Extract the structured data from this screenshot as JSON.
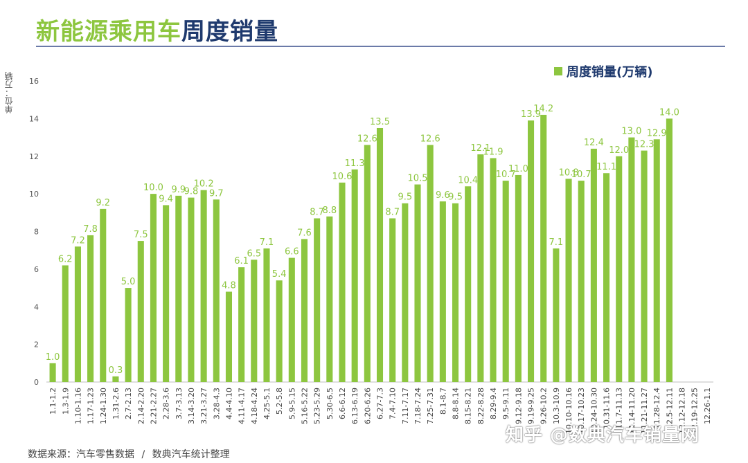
{
  "header": {
    "title_green": "新能源乘用车",
    "title_navy": "周度销量"
  },
  "unit_label": "单位：万辆",
  "legend": {
    "label": "周度销量(万辆)"
  },
  "footer": {
    "source_a": "数据来源：汽车零售数据",
    "separator": "/",
    "source_b": "数典汽车统计整理"
  },
  "watermark": "知乎 @数典汽车销量网",
  "colors": {
    "bar": "#8dc63f",
    "label": "#8dc63f",
    "title_green": "#8dc63f",
    "title_navy": "#1f3a6e"
  },
  "chart_data": {
    "type": "bar",
    "ylim": [
      0,
      16
    ],
    "yticks": [
      0,
      2,
      4,
      6,
      8,
      10,
      12,
      14,
      16
    ],
    "grid": false,
    "legend_position": "top-right",
    "categories": [
      "1.1-1.2",
      "1.3-1.9",
      "1.10-1.16",
      "1.17-1.23",
      "1.24-1.30",
      "1.31-2.6",
      "2.7-2.13",
      "2.14-2.20",
      "2.21-2.27",
      "2.28-3.6",
      "3.7-3.13",
      "3.14-3.20",
      "3.21-3.27",
      "3.28-4.3",
      "4.4-4.10",
      "4.11-4.17",
      "4.18-4.24",
      "4.25-5.1",
      "5.2-5.8",
      "5.9-5.15",
      "5.16-5.22",
      "5.23-5.29",
      "5.30-6.5",
      "6.6-6.12",
      "6.13-6.19",
      "6.20-6.26",
      "6.27-7.3",
      "7.4-7.10",
      "7.11-7.17",
      "7.18-7.24",
      "7.25-7.31",
      "8.1-8.7",
      "8.8-8.14",
      "8.15-8.21",
      "8.22-8.28",
      "8.29-9.4",
      "9.5-9.11",
      "9.12-9.18",
      "9.19-9.25",
      "9.26-10.2",
      "10.3-10.9",
      "10.10-10.16",
      "10.17-10.23",
      "10.24-10.30",
      "10.31-11.6",
      "11.7-11.13",
      "11.14-11.20",
      "11.21-11.27",
      "11.28-12.4",
      "12.5-12.11",
      "12.12-12.18",
      "12.19-12.25",
      "12.26-1.1"
    ],
    "series": [
      {
        "name": "周度销量(万辆)",
        "values": [
          1.0,
          6.2,
          7.2,
          7.8,
          9.2,
          0.3,
          5.0,
          7.5,
          10.0,
          9.4,
          9.9,
          9.8,
          10.2,
          9.7,
          4.8,
          6.1,
          6.5,
          7.1,
          5.4,
          6.6,
          7.6,
          8.7,
          8.8,
          10.6,
          11.3,
          12.6,
          13.5,
          8.7,
          9.5,
          10.5,
          12.6,
          9.6,
          9.5,
          10.4,
          12.1,
          11.9,
          10.7,
          11.0,
          13.9,
          14.2,
          7.1,
          10.8,
          10.7,
          12.4,
          11.1,
          12.0,
          13.0,
          12.3,
          12.9,
          14.0,
          null,
          null,
          null
        ],
        "labels": [
          "1.0",
          "6.2",
          "7.2",
          "7.8",
          "9.2",
          "0.3",
          "5.0",
          "7.5",
          "10.0",
          "9.4",
          "9.9",
          "9.8",
          "10.2",
          "9.7",
          "4.8",
          "6.1",
          "6.5",
          "7.1",
          "5.4",
          "6.6",
          "7.6",
          "8.7",
          "8.8",
          "10.6",
          "11.3",
          "12.6",
          "13.5",
          "8.7",
          "9.5",
          "10.5",
          "12.6",
          "9.6",
          "9.5",
          "10.4",
          "12.1",
          "11.9",
          "10.7",
          "11.0",
          "13.9",
          "14.2",
          "7.1",
          "10.8",
          "10.7",
          "12.4",
          "11.1",
          "12.0",
          "13.0",
          "12.3",
          "12.9",
          "14.0",
          "",
          "",
          ""
        ]
      }
    ]
  }
}
